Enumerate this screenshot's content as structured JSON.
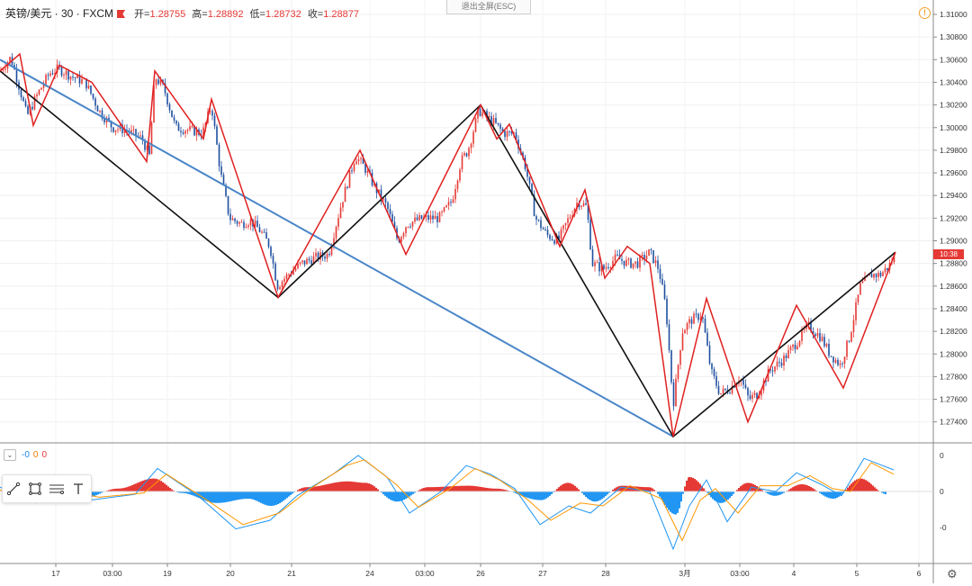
{
  "header": {
    "symbol": "英镑/美元 · 30 · FXCM",
    "open_label": "开=",
    "open": "1.28755",
    "high_label": "高=",
    "high": "1.28892",
    "low_label": "低=",
    "low": "1.28732",
    "close_label": "收=",
    "close": "1.28877"
  },
  "exit_fullscreen": "退出全屏(ESC)",
  "price_tag": "10:38",
  "indicator": {
    "v1": "-0",
    "v2": "0",
    "v3": "0"
  },
  "colors": {
    "up": "#e53935",
    "down": "#1e4fa0",
    "wave": "#e02020",
    "trend": "#111111",
    "channel": "#4a86c8",
    "macd": "#2196f3",
    "signal": "#ff9800"
  },
  "chart_data": [
    {
      "type": "candlestick",
      "title": "",
      "y_axis": {
        "ticks": [
          "1.31000",
          "1.30800",
          "1.30600",
          "1.30400",
          "1.30200",
          "1.30000",
          "1.29800",
          "1.29600",
          "1.29400",
          "1.29200",
          "1.29000",
          "1.28800",
          "1.28600",
          "1.28400",
          "1.28200",
          "1.28000",
          "1.27800",
          "1.27600",
          "1.27400"
        ],
        "range": [
          1.2725,
          1.3105
        ]
      },
      "x_axis": {
        "ticks": [
          "17",
          "03:00",
          "19",
          "20",
          "21",
          "24",
          "03:00",
          "26",
          "27",
          "28",
          "3月",
          "03:00",
          "4",
          "5",
          "6"
        ]
      },
      "price_path": [
        [
          0,
          1.305
        ],
        [
          12,
          1.3062
        ],
        [
          20,
          1.304
        ],
        [
          30,
          1.301
        ],
        [
          42,
          1.303
        ],
        [
          55,
          1.3048
        ],
        [
          65,
          1.3052
        ],
        [
          80,
          1.3045
        ],
        [
          95,
          1.304
        ],
        [
          110,
          1.3015
        ],
        [
          125,
          1.3
        ],
        [
          140,
          1.2998
        ],
        [
          158,
          1.299
        ],
        [
          166,
          1.2975
        ],
        [
          172,
          1.3045
        ],
        [
          182,
          1.3035
        ],
        [
          195,
          1.3
        ],
        [
          210,
          1.2998
        ],
        [
          225,
          1.2995
        ],
        [
          235,
          1.302
        ],
        [
          245,
          1.296
        ],
        [
          255,
          1.292
        ],
        [
          268,
          1.2915
        ],
        [
          278,
          1.2918
        ],
        [
          290,
          1.2908
        ],
        [
          300,
          1.2895
        ],
        [
          308,
          1.286
        ],
        [
          320,
          1.287
        ],
        [
          335,
          1.288
        ],
        [
          350,
          1.2885
        ],
        [
          365,
          1.2888
        ],
        [
          380,
          1.2935
        ],
        [
          395,
          1.2975
        ],
        [
          405,
          1.2965
        ],
        [
          418,
          1.2945
        ],
        [
          430,
          1.293
        ],
        [
          442,
          1.29
        ],
        [
          452,
          1.2915
        ],
        [
          470,
          1.292
        ],
        [
          488,
          1.292
        ],
        [
          502,
          1.2935
        ],
        [
          512,
          1.297
        ],
        [
          520,
          1.298
        ],
        [
          532,
          1.3015
        ],
        [
          548,
          1.3005
        ],
        [
          560,
          1.2995
        ],
        [
          572,
          1.2995
        ],
        [
          584,
          1.2965
        ],
        [
          595,
          1.292
        ],
        [
          608,
          1.2905
        ],
        [
          620,
          1.29
        ],
        [
          632,
          1.292
        ],
        [
          642,
          1.2935
        ],
        [
          652,
          1.293
        ],
        [
          658,
          1.288
        ],
        [
          670,
          1.2875
        ],
        [
          685,
          1.2885
        ],
        [
          698,
          1.288
        ],
        [
          708,
          1.288
        ],
        [
          722,
          1.289
        ],
        [
          732,
          1.2875
        ],
        [
          740,
          1.284
        ],
        [
          748,
          1.2755
        ],
        [
          758,
          1.282
        ],
        [
          768,
          1.283
        ],
        [
          780,
          1.2835
        ],
        [
          790,
          1.2785
        ],
        [
          800,
          1.2765
        ],
        [
          812,
          1.277
        ],
        [
          822,
          1.278
        ],
        [
          832,
          1.276
        ],
        [
          842,
          1.2765
        ],
        [
          855,
          1.2785
        ],
        [
          870,
          1.2795
        ],
        [
          885,
          1.281
        ],
        [
          898,
          1.2825
        ],
        [
          912,
          1.2815
        ],
        [
          922,
          1.28
        ],
        [
          934,
          1.279
        ],
        [
          944,
          1.2815
        ],
        [
          956,
          1.286
        ],
        [
          968,
          1.287
        ],
        [
          978,
          1.287
        ],
        [
          988,
          1.2878
        ],
        [
          995,
          1.2888
        ]
      ],
      "wave_lines": [
        [
          0,
          1.305
        ],
        [
          22,
          1.3065
        ],
        [
          37,
          1.3002
        ],
        [
          66,
          1.3055
        ],
        [
          102,
          1.304
        ],
        [
          163,
          1.297
        ],
        [
          172,
          1.305
        ],
        [
          226,
          1.299
        ],
        [
          235,
          1.3025
        ],
        [
          309,
          1.285
        ],
        [
          400,
          1.298
        ],
        [
          451,
          1.2888
        ],
        [
          534,
          1.302
        ],
        [
          552,
          1.299
        ],
        [
          566,
          1.3003
        ],
        [
          622,
          1.2895
        ],
        [
          650,
          1.2945
        ],
        [
          672,
          1.2867
        ],
        [
          697,
          1.2895
        ],
        [
          722,
          1.288
        ],
        [
          748,
          1.2727
        ],
        [
          785,
          1.2849
        ],
        [
          831,
          1.274
        ],
        [
          885,
          1.2843
        ],
        [
          937,
          1.277
        ],
        [
          995,
          1.289
        ]
      ],
      "trend_lines": [
        [
          0,
          1.305
        ],
        [
          309,
          1.285
        ],
        [
          534,
          1.302
        ],
        [
          748,
          1.2727
        ],
        [
          995,
          1.289
        ]
      ],
      "channel_line": [
        [
          0,
          1.306
        ],
        [
          748,
          1.2727
        ]
      ]
    },
    {
      "type": "macd",
      "y_axis": {
        "ticks": [
          "0",
          "0",
          "-0"
        ]
      },
      "histogram": [
        [
          5,
          -0.3
        ],
        [
          35,
          -0.6
        ],
        [
          60,
          0.4
        ],
        [
          90,
          -0.5
        ],
        [
          130,
          0.2
        ],
        [
          170,
          0.9
        ],
        [
          200,
          -0.1
        ],
        [
          240,
          -0.8
        ],
        [
          275,
          -0.5
        ],
        [
          300,
          -1.0
        ],
        [
          340,
          0.3
        ],
        [
          385,
          0.7
        ],
        [
          405,
          0.6
        ],
        [
          440,
          -0.7
        ],
        [
          475,
          0.3
        ],
        [
          520,
          0.4
        ],
        [
          550,
          0.2
        ],
        [
          600,
          -0.6
        ],
        [
          630,
          0.6
        ],
        [
          660,
          -0.7
        ],
        [
          690,
          0.4
        ],
        [
          720,
          0.3
        ],
        [
          750,
          -1.6
        ],
        [
          765,
          1.0
        ],
        [
          800,
          -0.8
        ],
        [
          830,
          0.6
        ],
        [
          860,
          -0.3
        ],
        [
          890,
          0.5
        ],
        [
          925,
          -0.5
        ],
        [
          955,
          0.9
        ],
        [
          985,
          -0.2
        ]
      ],
      "macd_line": [
        [
          0,
          0.3
        ],
        [
          40,
          -0.8
        ],
        [
          60,
          0.5
        ],
        [
          100,
          -0.6
        ],
        [
          150,
          -0.2
        ],
        [
          175,
          1.6
        ],
        [
          220,
          -0.3
        ],
        [
          262,
          -2.6
        ],
        [
          300,
          -2.0
        ],
        [
          330,
          -0.3
        ],
        [
          370,
          1.2
        ],
        [
          398,
          2.5
        ],
        [
          430,
          1.0
        ],
        [
          455,
          -1.5
        ],
        [
          490,
          0.0
        ],
        [
          518,
          1.8
        ],
        [
          545,
          1.2
        ],
        [
          572,
          0.2
        ],
        [
          600,
          -2.3
        ],
        [
          632,
          -1.0
        ],
        [
          656,
          -1.5
        ],
        [
          690,
          0.3
        ],
        [
          722,
          0.0
        ],
        [
          748,
          -4.0
        ],
        [
          766,
          -1.0
        ],
        [
          785,
          0.8
        ],
        [
          808,
          -2.1
        ],
        [
          835,
          0.3
        ],
        [
          862,
          0.0
        ],
        [
          885,
          1.3
        ],
        [
          912,
          0.5
        ],
        [
          935,
          -0.3
        ],
        [
          960,
          2.3
        ],
        [
          993,
          1.5
        ]
      ],
      "signal_line": [
        [
          0,
          0.1
        ],
        [
          40,
          -0.5
        ],
        [
          65,
          0.2
        ],
        [
          110,
          -0.4
        ],
        [
          160,
          -0.1
        ],
        [
          185,
          1.2
        ],
        [
          230,
          -0.6
        ],
        [
          270,
          -2.3
        ],
        [
          310,
          -1.5
        ],
        [
          345,
          0.2
        ],
        [
          385,
          1.8
        ],
        [
          405,
          2.2
        ],
        [
          440,
          0.5
        ],
        [
          465,
          -1.1
        ],
        [
          500,
          0.2
        ],
        [
          528,
          1.6
        ],
        [
          555,
          0.8
        ],
        [
          585,
          -0.5
        ],
        [
          612,
          -2.0
        ],
        [
          645,
          -0.8
        ],
        [
          670,
          -1.0
        ],
        [
          700,
          0.4
        ],
        [
          735,
          -0.5
        ],
        [
          758,
          -3.4
        ],
        [
          778,
          -0.6
        ],
        [
          795,
          0.2
        ],
        [
          820,
          -1.5
        ],
        [
          845,
          0.4
        ],
        [
          875,
          0.4
        ],
        [
          900,
          1.1
        ],
        [
          925,
          0.2
        ],
        [
          945,
          0.0
        ],
        [
          968,
          2.0
        ],
        [
          993,
          1.2
        ]
      ]
    }
  ]
}
